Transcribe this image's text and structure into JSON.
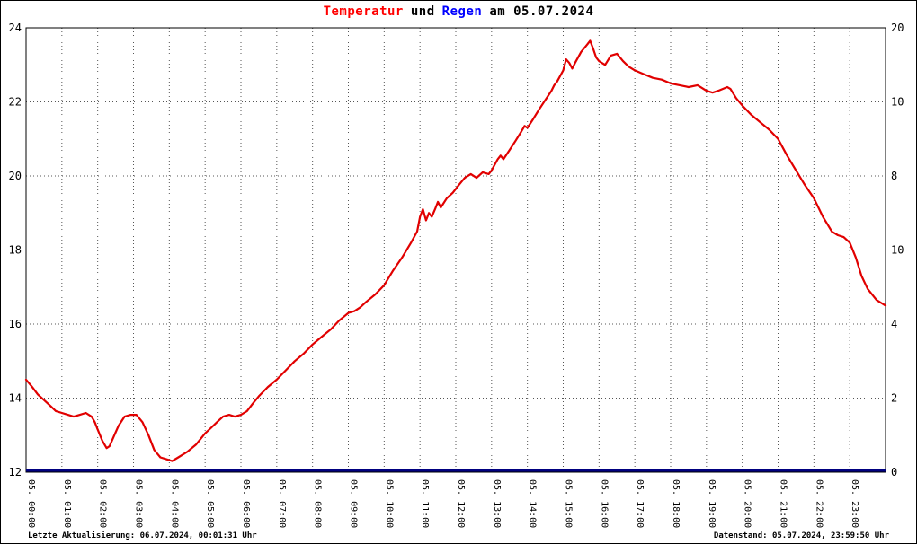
{
  "title": {
    "parts": [
      {
        "text": "Temperatur",
        "color": "#ff0000"
      },
      {
        "text": "und",
        "color": "#000000"
      },
      {
        "text": "Regen",
        "color": "#0000ff"
      },
      {
        "text": "am 05.07.2024",
        "color": "#000000"
      }
    ]
  },
  "footer": {
    "last_update": "Letzte Aktualisierung: 06.07.2024, 00:01:31 Uhr",
    "data_state": "Datenstand: 05.07.2024, 23:59:50 Uhr"
  },
  "colors": {
    "temperature": "#e10000",
    "rain": "#000080",
    "grid": "#555555",
    "frame": "#000000",
    "tick_orange": "#ff8c00",
    "tick_green": "#00b000"
  },
  "chart_data": {
    "type": "line",
    "title": "Temperatur und Regen am 05.07.2024",
    "grid": "dotted",
    "legend": "none",
    "x_axis": {
      "min": 0,
      "max": 24,
      "tick_labels": [
        "05. 00:00",
        "05. 01:00",
        "05. 02:00",
        "05. 03:00",
        "05. 04:00",
        "05. 05:00",
        "05. 06:00",
        "05. 07:00",
        "05. 08:00",
        "05. 09:00",
        "05. 10:00",
        "05. 11:00",
        "05. 12:00",
        "05. 13:00",
        "05. 14:00",
        "05. 15:00",
        "05. 16:00",
        "05. 17:00",
        "05. 18:00",
        "05. 19:00",
        "05. 20:00",
        "05. 21:00",
        "05. 22:00",
        "05. 23:00"
      ]
    },
    "y_axis_left": {
      "min": 12,
      "max": 24,
      "tick_labels": [
        "24",
        "22",
        "20",
        "18",
        "16",
        "14",
        "12"
      ]
    },
    "y_axis_right": {
      "tick_labels": [
        {
          "text": "20",
          "color": "#000000"
        },
        {
          "text": "10",
          "color": "#ff8c00"
        },
        {
          "text": "8",
          "color": "#00b000"
        },
        {
          "text": "10",
          "color": "#000000"
        },
        {
          "text": "4",
          "color": "#ff8c00"
        },
        {
          "text": "2",
          "color": "#00b000"
        },
        {
          "text": "0",
          "color": "#000000"
        }
      ]
    },
    "series": [
      {
        "name": "Temperatur",
        "axis": "left",
        "color": "#e10000",
        "points": [
          [
            0,
            14.5
          ],
          [
            0.17,
            14.3
          ],
          [
            0.33,
            14.1
          ],
          [
            0.5,
            13.95
          ],
          [
            0.67,
            13.8
          ],
          [
            0.83,
            13.65
          ],
          [
            1,
            13.6
          ],
          [
            1.17,
            13.55
          ],
          [
            1.33,
            13.5
          ],
          [
            1.5,
            13.55
          ],
          [
            1.67,
            13.6
          ],
          [
            1.83,
            13.5
          ],
          [
            1.92,
            13.35
          ],
          [
            2,
            13.15
          ],
          [
            2.13,
            12.85
          ],
          [
            2.25,
            12.65
          ],
          [
            2.33,
            12.7
          ],
          [
            2.42,
            12.9
          ],
          [
            2.58,
            13.25
          ],
          [
            2.75,
            13.5
          ],
          [
            2.92,
            13.55
          ],
          [
            3.08,
            13.55
          ],
          [
            3.25,
            13.35
          ],
          [
            3.42,
            13.0
          ],
          [
            3.58,
            12.6
          ],
          [
            3.75,
            12.4
          ],
          [
            3.92,
            12.35
          ],
          [
            4.08,
            12.3
          ],
          [
            4.25,
            12.4
          ],
          [
            4.5,
            12.55
          ],
          [
            4.75,
            12.75
          ],
          [
            5,
            13.05
          ],
          [
            5.17,
            13.2
          ],
          [
            5.33,
            13.35
          ],
          [
            5.5,
            13.5
          ],
          [
            5.67,
            13.55
          ],
          [
            5.83,
            13.5
          ],
          [
            6,
            13.55
          ],
          [
            6.17,
            13.65
          ],
          [
            6.33,
            13.85
          ],
          [
            6.5,
            14.05
          ],
          [
            6.75,
            14.3
          ],
          [
            7,
            14.5
          ],
          [
            7.25,
            14.75
          ],
          [
            7.5,
            15.0
          ],
          [
            7.75,
            15.2
          ],
          [
            8,
            15.45
          ],
          [
            8.25,
            15.65
          ],
          [
            8.5,
            15.85
          ],
          [
            8.75,
            16.1
          ],
          [
            9,
            16.3
          ],
          [
            9.17,
            16.35
          ],
          [
            9.33,
            16.45
          ],
          [
            9.5,
            16.6
          ],
          [
            9.75,
            16.8
          ],
          [
            10,
            17.05
          ],
          [
            10.25,
            17.45
          ],
          [
            10.5,
            17.8
          ],
          [
            10.75,
            18.2
          ],
          [
            10.92,
            18.5
          ],
          [
            11,
            18.9
          ],
          [
            11.08,
            19.1
          ],
          [
            11.17,
            18.8
          ],
          [
            11.25,
            19.0
          ],
          [
            11.33,
            18.9
          ],
          [
            11.42,
            19.1
          ],
          [
            11.5,
            19.3
          ],
          [
            11.58,
            19.15
          ],
          [
            11.75,
            19.4
          ],
          [
            11.92,
            19.55
          ],
          [
            12.08,
            19.75
          ],
          [
            12.25,
            19.95
          ],
          [
            12.42,
            20.05
          ],
          [
            12.58,
            19.95
          ],
          [
            12.75,
            20.1
          ],
          [
            12.92,
            20.05
          ],
          [
            13,
            20.15
          ],
          [
            13.17,
            20.45
          ],
          [
            13.25,
            20.55
          ],
          [
            13.33,
            20.45
          ],
          [
            13.5,
            20.7
          ],
          [
            13.67,
            20.95
          ],
          [
            13.83,
            21.2
          ],
          [
            13.92,
            21.35
          ],
          [
            14,
            21.3
          ],
          [
            14.17,
            21.55
          ],
          [
            14.33,
            21.8
          ],
          [
            14.5,
            22.05
          ],
          [
            14.67,
            22.3
          ],
          [
            14.75,
            22.45
          ],
          [
            14.83,
            22.55
          ],
          [
            15,
            22.85
          ],
          [
            15.08,
            23.15
          ],
          [
            15.17,
            23.05
          ],
          [
            15.25,
            22.9
          ],
          [
            15.33,
            23.05
          ],
          [
            15.5,
            23.35
          ],
          [
            15.67,
            23.55
          ],
          [
            15.75,
            23.65
          ],
          [
            15.83,
            23.45
          ],
          [
            15.92,
            23.2
          ],
          [
            16,
            23.1
          ],
          [
            16.17,
            23.0
          ],
          [
            16.33,
            23.25
          ],
          [
            16.5,
            23.3
          ],
          [
            16.67,
            23.1
          ],
          [
            16.83,
            22.95
          ],
          [
            17,
            22.85
          ],
          [
            17.25,
            22.75
          ],
          [
            17.5,
            22.65
          ],
          [
            17.75,
            22.6
          ],
          [
            18,
            22.5
          ],
          [
            18.25,
            22.45
          ],
          [
            18.5,
            22.4
          ],
          [
            18.75,
            22.45
          ],
          [
            19,
            22.3
          ],
          [
            19.17,
            22.25
          ],
          [
            19.33,
            22.3
          ],
          [
            19.58,
            22.4
          ],
          [
            19.67,
            22.35
          ],
          [
            19.83,
            22.1
          ],
          [
            20,
            21.9
          ],
          [
            20.25,
            21.65
          ],
          [
            20.5,
            21.45
          ],
          [
            20.75,
            21.25
          ],
          [
            21,
            21.0
          ],
          [
            21.25,
            20.55
          ],
          [
            21.5,
            20.15
          ],
          [
            21.75,
            19.75
          ],
          [
            22,
            19.4
          ],
          [
            22.25,
            18.9
          ],
          [
            22.5,
            18.5
          ],
          [
            22.67,
            18.4
          ],
          [
            22.83,
            18.35
          ],
          [
            23,
            18.2
          ],
          [
            23.17,
            17.8
          ],
          [
            23.33,
            17.3
          ],
          [
            23.5,
            16.95
          ],
          [
            23.75,
            16.65
          ],
          [
            24,
            16.5
          ]
        ]
      },
      {
        "name": "Regen",
        "axis": "right",
        "color": "#000080",
        "points": [
          [
            0,
            0
          ],
          [
            24,
            0
          ]
        ]
      }
    ]
  }
}
